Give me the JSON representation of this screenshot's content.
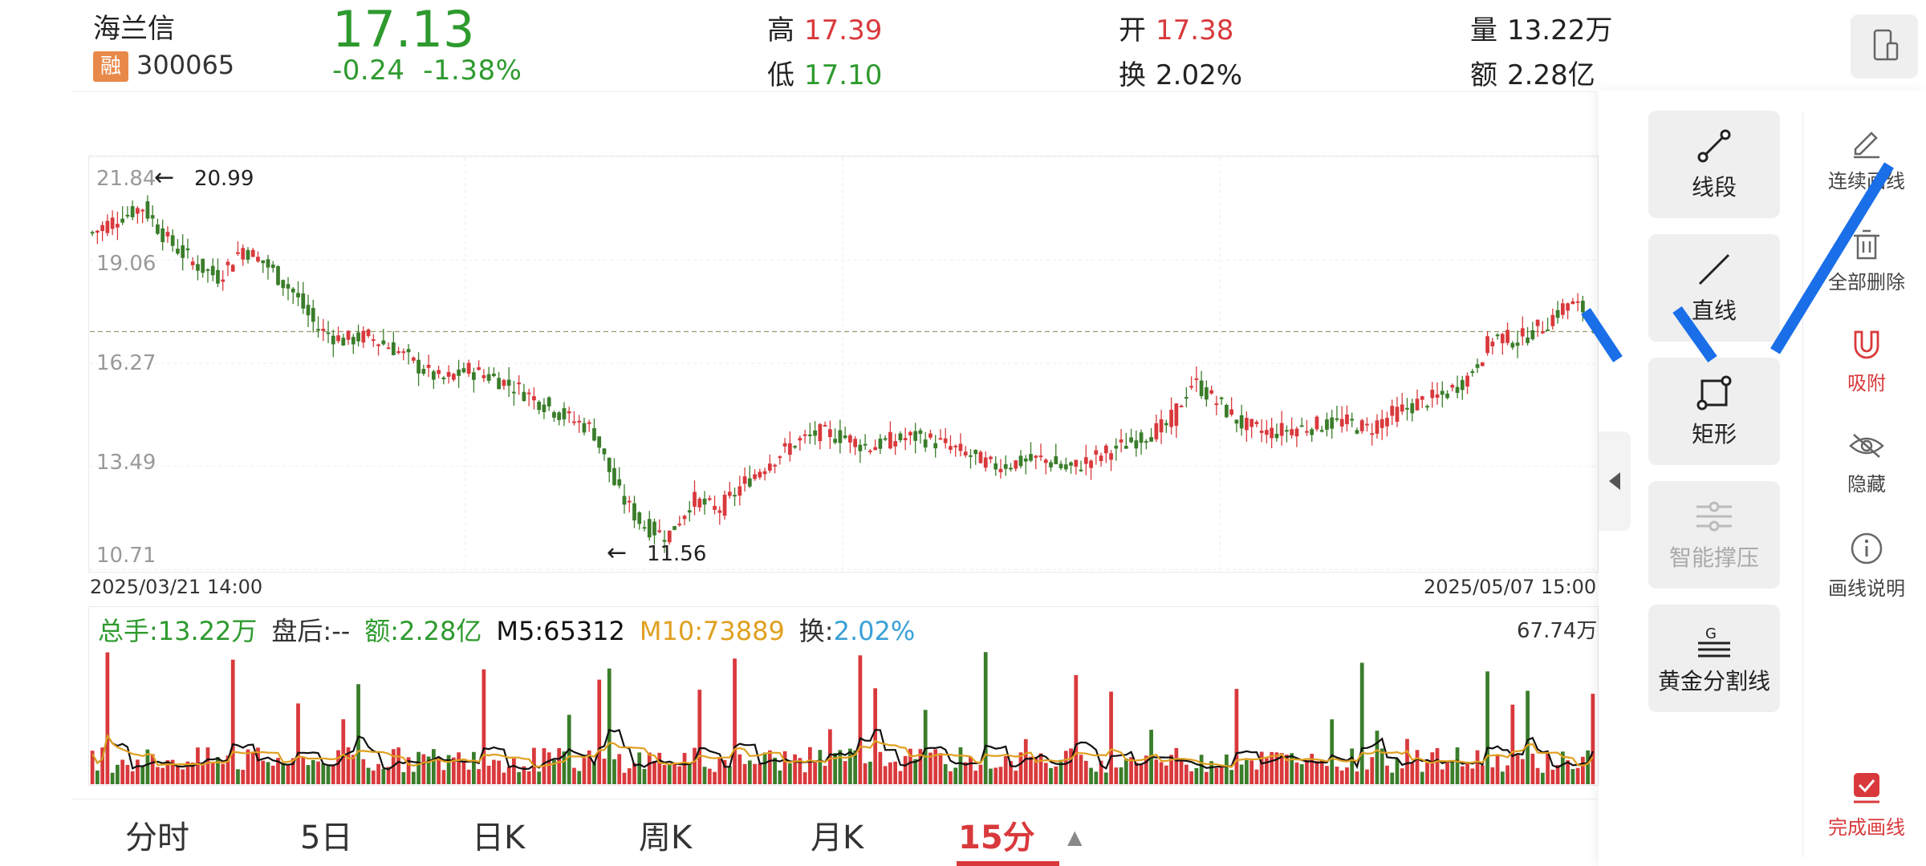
{
  "stock": {
    "name": "海兰信",
    "badge": "融",
    "code": "300065",
    "price": "17.13",
    "change": "-0.24",
    "change_pct": "-1.38%"
  },
  "stats": {
    "high_label": "高",
    "high": "17.39",
    "low_label": "低",
    "low": "17.10",
    "open_label": "开",
    "open": "17.38",
    "turnover_label": "换",
    "turnover": "2.02%",
    "volume_label": "量",
    "volume": "13.22万",
    "amount_label": "额",
    "amount": "2.28亿"
  },
  "chart": {
    "y_ticks": [
      "21.84",
      "19.06",
      "16.27",
      "13.49",
      "10.71"
    ],
    "start_date": "2025/03/21 14:00",
    "end_date": "2025/05/07 15:00",
    "high_mark": "20.99",
    "low_mark": "11.56",
    "colors": {
      "up": "#d9393c",
      "down": "#3a7d2a",
      "ma5": "#111111",
      "ma10": "#e0a020"
    }
  },
  "chart_data": {
    "type": "candlestick",
    "x_range": [
      "2025/03/21 14:00",
      "2025/05/07 15:00"
    ],
    "ylim": [
      10.71,
      21.84
    ],
    "y_ticks": [
      21.84,
      19.06,
      16.27,
      13.49,
      10.71
    ],
    "close_trace": [
      19.8,
      20.2,
      20.5,
      19.6,
      19.0,
      18.6,
      19.4,
      18.9,
      18.2,
      17.2,
      16.9,
      17.0,
      16.7,
      16.2,
      15.8,
      16.1,
      15.9,
      15.6,
      15.2,
      14.8,
      14.5,
      12.8,
      11.9,
      11.6,
      12.6,
      12.3,
      13.0,
      13.6,
      14.1,
      14.4,
      14.3,
      14.0,
      14.2,
      14.3,
      14.1,
      13.8,
      13.5,
      13.6,
      13.7,
      13.4,
      13.7,
      14.0,
      14.3,
      14.6,
      15.8,
      15.2,
      14.6,
      14.4,
      14.5,
      14.6,
      14.7,
      14.5,
      14.9,
      15.2,
      15.4,
      15.9,
      17.0,
      16.9,
      17.3,
      17.9,
      17.6
    ],
    "annotations": {
      "high": 20.99,
      "low": 11.56
    },
    "volume": {
      "total": "13.22万",
      "after_hours": "--",
      "amount": "2.28亿",
      "M5": 65312,
      "M10": 73889,
      "turnover": "2.02%",
      "max_label": "67.74万"
    }
  },
  "volume_legend": {
    "total": "总手:13.22万",
    "after_hours": "盘后:--",
    "amount": "额:2.28亿",
    "m5": "M5:65312",
    "m10": "M10:73889",
    "turnover_label": "换:",
    "turnover_value": "2.02%",
    "max": "67.74万"
  },
  "tabs": [
    {
      "label": "分时"
    },
    {
      "label": "5日"
    },
    {
      "label": "日K"
    },
    {
      "label": "周K"
    },
    {
      "label": "月K"
    },
    {
      "label": "15分",
      "active": true
    }
  ],
  "tools": [
    {
      "label": "线段",
      "icon": "line-segment-icon"
    },
    {
      "label": "直线",
      "icon": "straight-line-icon"
    },
    {
      "label": "矩形",
      "icon": "rectangle-icon"
    },
    {
      "label": "智能撑压",
      "icon": "smart-support-icon",
      "disabled": true
    },
    {
      "label": "黄金分割线",
      "icon": "golden-ratio-icon"
    }
  ],
  "side_tools": [
    {
      "label": "连续画线",
      "icon": "pencil-icon"
    },
    {
      "label": "全部删除",
      "icon": "trash-icon"
    },
    {
      "label": "吸附",
      "icon": "magnet-icon"
    },
    {
      "label": "隐藏",
      "icon": "eye-hidden-icon"
    },
    {
      "label": "画线说明",
      "icon": "info-icon"
    },
    {
      "label": "完成画线",
      "icon": "check-icon"
    }
  ]
}
